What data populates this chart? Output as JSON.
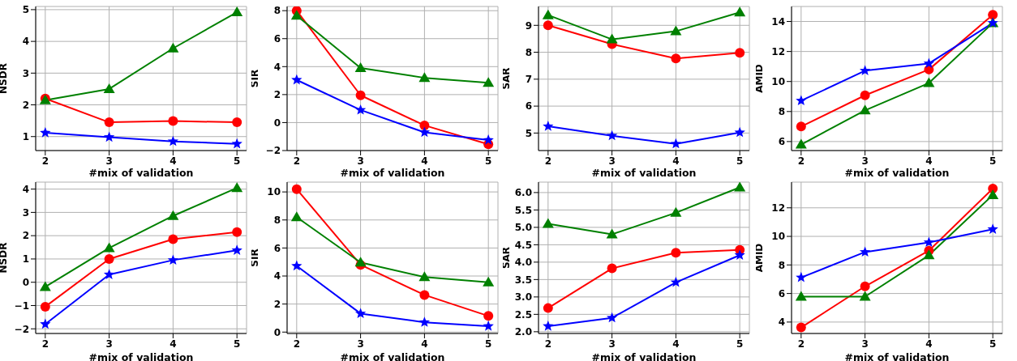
{
  "chart_data": [
    {
      "type": "line",
      "xlabel": "#mix of validation",
      "ylabel": "NSDR",
      "x": [
        2,
        3,
        4,
        5
      ],
      "xlim": [
        1.85,
        5.15
      ],
      "xticks": [
        2,
        3,
        4,
        5
      ],
      "ylim": [
        0.56,
        5.1
      ],
      "yticks": [
        1,
        2,
        3,
        4,
        5
      ],
      "grid": true,
      "series": [
        {
          "color": "#ff0000",
          "marker": "circle",
          "values": [
            2.2,
            1.45,
            1.49,
            1.45
          ]
        },
        {
          "color": "#008000",
          "marker": "triangle",
          "values": [
            2.15,
            2.5,
            3.78,
            4.92
          ]
        },
        {
          "color": "#0000ff",
          "marker": "star",
          "values": [
            1.12,
            0.98,
            0.85,
            0.77
          ]
        }
      ]
    },
    {
      "type": "line",
      "xlabel": "#mix of validation",
      "ylabel": "SIR",
      "x": [
        2,
        3,
        4,
        5
      ],
      "xlim": [
        1.85,
        5.15
      ],
      "xticks": [
        2,
        3,
        4,
        5
      ],
      "ylim": [
        -2,
        8.3
      ],
      "yticks": [
        {
          "value": -2,
          "label": "−2"
        },
        0,
        2,
        4,
        6,
        8
      ],
      "grid": true,
      "series": [
        {
          "color": "#ff0000",
          "marker": "circle",
          "values": [
            8,
            1.95,
            -0.2,
            -1.55
          ]
        },
        {
          "color": "#008000",
          "marker": "triangle",
          "values": [
            7.65,
            3.9,
            3.2,
            2.85
          ]
        },
        {
          "color": "#0000ff",
          "marker": "star",
          "values": [
            3.05,
            0.9,
            -0.7,
            -1.25
          ]
        }
      ]
    },
    {
      "type": "line",
      "xlabel": "#mix of validation",
      "ylabel": "SAR",
      "x": [
        2,
        3,
        4,
        5
      ],
      "xlim": [
        1.85,
        5.15
      ],
      "xticks": [
        2,
        3,
        4,
        5
      ],
      "ylim": [
        4.35,
        9.7
      ],
      "yticks": [
        5,
        6,
        7,
        8,
        9
      ],
      "grid": true,
      "series": [
        {
          "color": "#ff0000",
          "marker": "circle",
          "values": [
            9,
            8.3,
            7.77,
            7.98
          ]
        },
        {
          "color": "#008000",
          "marker": "triangle",
          "values": [
            9.38,
            8.48,
            8.78,
            9.48
          ]
        },
        {
          "color": "#0000ff",
          "marker": "star",
          "values": [
            5.25,
            4.9,
            4.6,
            5.02
          ]
        }
      ]
    },
    {
      "type": "line",
      "xlabel": "#mix of validation",
      "ylabel": "AMID",
      "x": [
        2,
        3,
        4,
        5
      ],
      "xlim": [
        1.85,
        5.15
      ],
      "xticks": [
        2,
        3,
        4,
        5
      ],
      "ylim": [
        5.4,
        15
      ],
      "yticks": [
        6,
        8,
        10,
        12,
        14
      ],
      "grid": true,
      "series": [
        {
          "color": "#ff0000",
          "marker": "circle",
          "values": [
            7,
            9.08,
            10.8,
            14.45
          ]
        },
        {
          "color": "#008000",
          "marker": "triangle",
          "values": [
            5.8,
            8.08,
            9.9,
            13.9
          ]
        },
        {
          "color": "#0000ff",
          "marker": "star",
          "values": [
            8.72,
            10.72,
            11.2,
            13.9
          ]
        }
      ]
    },
    {
      "type": "line",
      "xlabel": "#mix of validation",
      "ylabel": "NSDR",
      "x": [
        2,
        3,
        4,
        5
      ],
      "xlim": [
        1.85,
        5.15
      ],
      "xticks": [
        2,
        3,
        4,
        5
      ],
      "ylim": [
        -2.2,
        4.3
      ],
      "yticks": [
        {
          "value": -2,
          "label": "−2"
        },
        {
          "value": -1,
          "label": "−1"
        },
        0,
        1,
        2,
        3,
        4
      ],
      "grid": true,
      "series": [
        {
          "color": "#ff0000",
          "marker": "circle",
          "values": [
            -1.05,
            1.0,
            1.85,
            2.15
          ]
        },
        {
          "color": "#008000",
          "marker": "triangle",
          "values": [
            -0.2,
            1.47,
            2.85,
            4.05
          ]
        },
        {
          "color": "#0000ff",
          "marker": "star",
          "values": [
            -1.8,
            0.33,
            0.95,
            1.37
          ]
        }
      ]
    },
    {
      "type": "line",
      "xlabel": "#mix of validation",
      "ylabel": "SIR",
      "x": [
        2,
        3,
        4,
        5
      ],
      "xlim": [
        1.85,
        5.15
      ],
      "xticks": [
        2,
        3,
        4,
        5
      ],
      "ylim": [
        -0.1,
        10.7
      ],
      "yticks": [
        0,
        2,
        4,
        6,
        8,
        10
      ],
      "grid": true,
      "series": [
        {
          "color": "#ff0000",
          "marker": "circle",
          "values": [
            10.2,
            4.8,
            2.65,
            1.15
          ]
        },
        {
          "color": "#008000",
          "marker": "triangle",
          "values": [
            8.2,
            4.97,
            3.93,
            3.55
          ]
        },
        {
          "color": "#0000ff",
          "marker": "star",
          "values": [
            4.72,
            1.32,
            0.7,
            0.42
          ]
        }
      ]
    },
    {
      "type": "line",
      "xlabel": "#mix of validation",
      "ylabel": "SAR",
      "x": [
        2,
        3,
        4,
        5
      ],
      "xlim": [
        1.85,
        5.15
      ],
      "xticks": [
        2,
        3,
        4,
        5
      ],
      "ylim": [
        1.95,
        6.3
      ],
      "yticks": [
        {
          "value": 2,
          "label": "2.0"
        },
        2.5,
        {
          "value": 3,
          "label": "3.0"
        },
        3.5,
        {
          "value": 4,
          "label": "4.0"
        },
        4.5,
        {
          "value": 5,
          "label": "5.0"
        },
        5.5,
        {
          "value": 6,
          "label": "6.0"
        }
      ],
      "grid": true,
      "series": [
        {
          "color": "#ff0000",
          "marker": "circle",
          "values": [
            2.68,
            3.82,
            4.27,
            4.35
          ]
        },
        {
          "color": "#008000",
          "marker": "triangle",
          "values": [
            5.1,
            4.8,
            5.42,
            6.15
          ]
        },
        {
          "color": "#0000ff",
          "marker": "star",
          "values": [
            2.16,
            2.4,
            3.42,
            4.2
          ]
        }
      ]
    },
    {
      "type": "line",
      "xlabel": "#mix of validation",
      "ylabel": "AMID",
      "x": [
        2,
        3,
        4,
        5
      ],
      "xlim": [
        1.85,
        5.15
      ],
      "xticks": [
        2,
        3,
        4,
        5
      ],
      "ylim": [
        3.2,
        13.8
      ],
      "yticks": [
        4,
        6,
        8,
        10,
        12
      ],
      "grid": true,
      "series": [
        {
          "color": "#ff0000",
          "marker": "circle",
          "values": [
            3.62,
            6.5,
            9.0,
            13.35
          ]
        },
        {
          "color": "#008000",
          "marker": "triangle",
          "values": [
            5.78,
            5.78,
            8.68,
            12.9
          ]
        },
        {
          "color": "#0000ff",
          "marker": "star",
          "values": [
            7.12,
            8.9,
            9.58,
            10.5
          ]
        }
      ]
    }
  ]
}
